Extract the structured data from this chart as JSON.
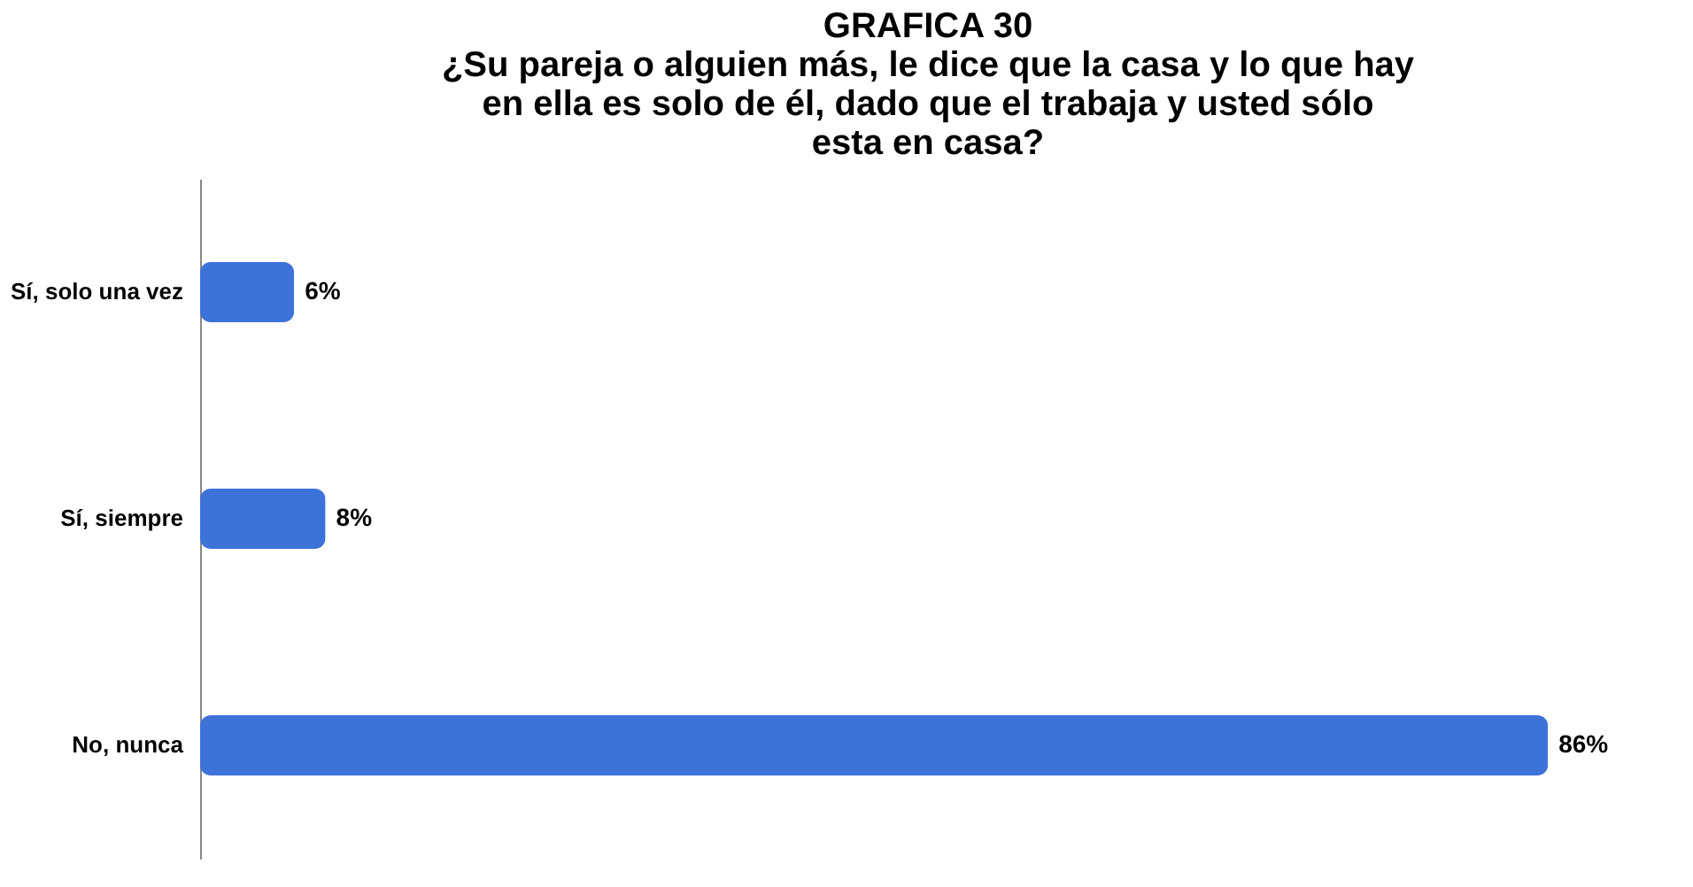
{
  "chart_data": {
    "type": "bar",
    "orientation": "horizontal",
    "title": [
      "¿Su pareja o alguien más, le dice que la casa y lo que hay",
      "en ella es solo de él, dado que el trabaja y usted sólo",
      "esta en casa?"
    ],
    "annotations": [
      "GRAFICA 30"
    ],
    "categories": [
      "Sí, solo una vez",
      "Sí, siempre",
      "No, nunca"
    ],
    "values": [
      6,
      8,
      86
    ],
    "value_labels": [
      "6%",
      "8%",
      "86%"
    ],
    "color": "#3d72d9",
    "grid": false
  }
}
